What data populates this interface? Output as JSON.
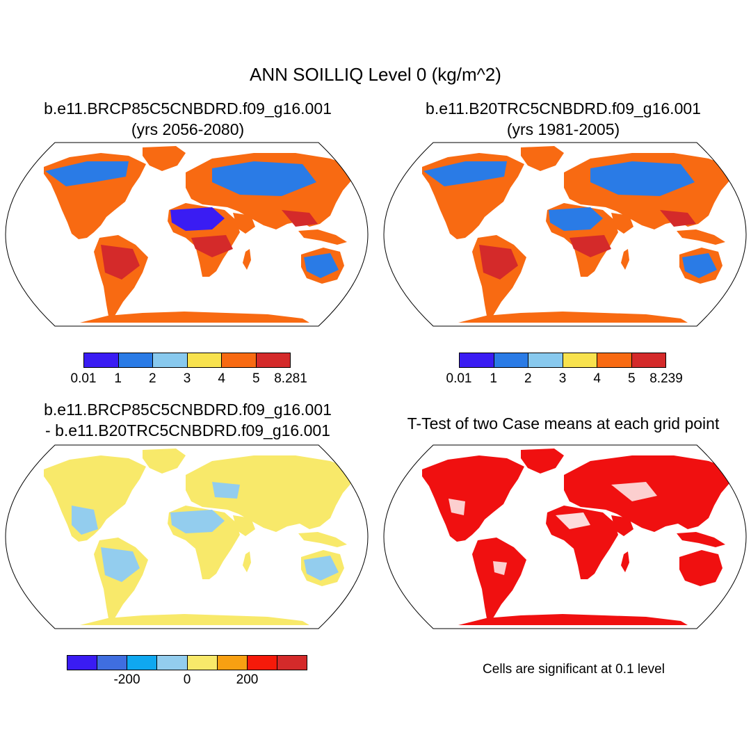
{
  "title": "ANN SOILLIQ Level 0 (kg/m^2)",
  "panels": {
    "case1": {
      "title_line1": "b.e11.BRCP85C5CNBDRD.f09_g16.001",
      "title_line2": "(yrs 2056-2080)",
      "colorbar": {
        "colors": [
          "#3a1cf3",
          "#2a7be6",
          "#88c9ee",
          "#f8e24e",
          "#f86a12",
          "#d42a2a"
        ],
        "labels": [
          "0.01",
          "1",
          "2",
          "3",
          "4",
          "5",
          "8.281"
        ]
      }
    },
    "case2": {
      "title_line1": "b.e11.B20TRC5CNBDRD.f09_g16.001",
      "title_line2": "(yrs 1981-2005)",
      "colorbar": {
        "colors": [
          "#3a1cf3",
          "#2a7be6",
          "#88c9ee",
          "#f8e24e",
          "#f86a12",
          "#d42a2a"
        ],
        "labels": [
          "0.01",
          "1",
          "2",
          "3",
          "4",
          "5",
          "8.239"
        ]
      }
    },
    "diff": {
      "title_line1": "b.e11.BRCP85C5CNBDRD.f09_g16.001",
      "title_line2": "- b.e11.B20TRC5CNBDRD.f09_g16.001",
      "colorbar": {
        "colors": [
          "#3a1cf3",
          "#3f6ee0",
          "#0fa8f0",
          "#93cdee",
          "#f8e96a",
          "#f8a012",
          "#f51a0a",
          "#d42a2a"
        ],
        "labels": [
          "-200",
          "0",
          "200"
        ]
      }
    },
    "ttest": {
      "title": "T-Test of two Case means at each grid point",
      "note": "Cells are significant at 0.1 level",
      "color": "#f01010"
    }
  }
}
